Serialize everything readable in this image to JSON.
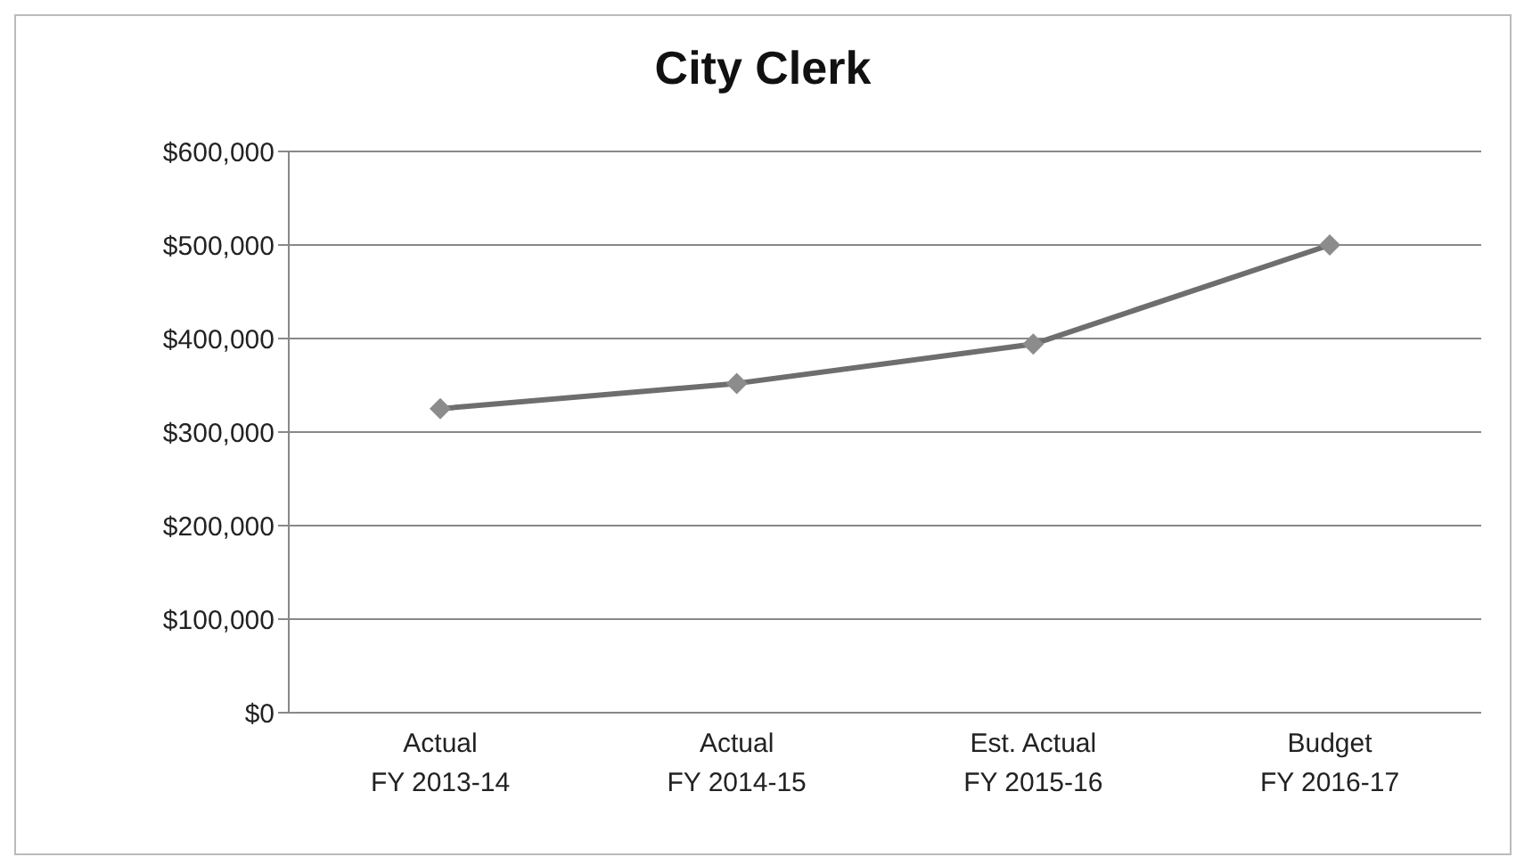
{
  "chart_data": {
    "type": "line",
    "title": "City Clerk",
    "categories": [
      "Actual\nFY 2013-14",
      "Actual\nFY 2014-15",
      "Est. Actual\nFY 2015-16",
      "Budget\nFY 2016-17"
    ],
    "series": [
      {
        "color": "#6e6e6e",
        "values": [
          325000,
          352000,
          394000,
          500000
        ]
      }
    ],
    "ylim": [
      0,
      600000
    ],
    "yticks": [
      {
        "value": 0,
        "label": "$0"
      },
      {
        "value": 100000,
        "label": "$100,000"
      },
      {
        "value": 200000,
        "label": "$200,000"
      },
      {
        "value": 300000,
        "label": "$300,000"
      },
      {
        "value": 400000,
        "label": "$400,000"
      },
      {
        "value": 500000,
        "label": "$500,000"
      },
      {
        "value": 600000,
        "label": "$600,000"
      }
    ],
    "grid": "y",
    "legend": false,
    "marker": "diamond",
    "line_style": "solid"
  }
}
